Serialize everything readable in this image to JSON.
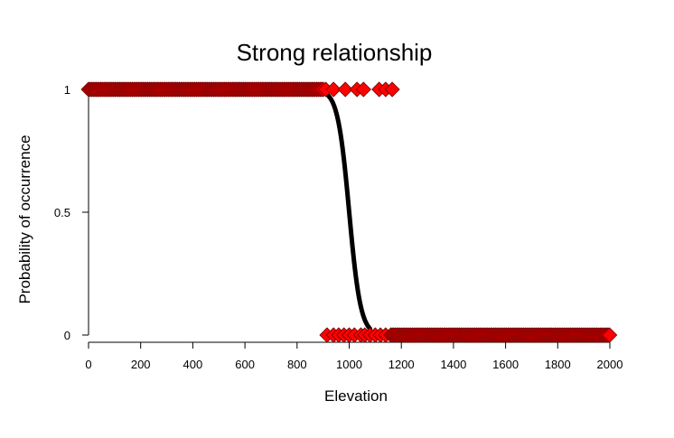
{
  "chart_data": {
    "type": "scatter",
    "title": "Strong relationship",
    "xlabel": "Elevation",
    "ylabel": "Probability of occurrence",
    "xlim": [
      0,
      2000
    ],
    "ylim": [
      0,
      1
    ],
    "x_ticks": [
      0,
      200,
      400,
      600,
      800,
      1000,
      1200,
      1400,
      1600,
      1800,
      2000
    ],
    "y_ticks": [
      0,
      0.5,
      1
    ],
    "grid": false,
    "legend": "none",
    "marker_color": "#ff0000",
    "marker_edge_color": "#6b0000",
    "curve_color": "#000000",
    "presence": {
      "dense_range": [
        0,
        900
      ],
      "points": [
        910,
        940,
        985,
        1030,
        1055,
        1115,
        1140,
        1165
      ],
      "value": 1
    },
    "absence": {
      "points": [
        915,
        940,
        960,
        980,
        1000,
        1020,
        1045,
        1060,
        1080,
        1100,
        1120,
        1140,
        1160
      ],
      "dense_range": [
        1165,
        2000
      ],
      "value": 0
    },
    "fitted_curve": {
      "type": "logistic",
      "midpoint": 1000,
      "scale": 22,
      "x_range": [
        900,
        1080
      ]
    }
  }
}
